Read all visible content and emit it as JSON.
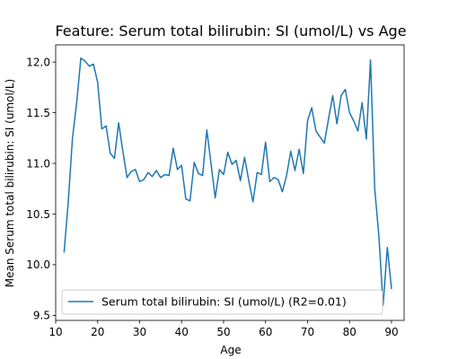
{
  "chart_data": {
    "type": "line",
    "title": "Feature: Serum total bilirubin:  SI (umol/L) vs Age",
    "xlabel": "Age",
    "ylabel": "Mean Serum total bilirubin:  SI (umol/L)",
    "xlim": [
      10,
      93
    ],
    "ylim": [
      9.45,
      12.17
    ],
    "xticks": [
      10,
      20,
      30,
      40,
      50,
      60,
      70,
      80,
      90
    ],
    "yticks": [
      9.5,
      10.0,
      10.5,
      11.0,
      11.5,
      12.0
    ],
    "xtick_labels": [
      "10",
      "20",
      "30",
      "40",
      "50",
      "60",
      "70",
      "80",
      "90"
    ],
    "ytick_labels": [
      "9.5",
      "10.0",
      "10.5",
      "11.0",
      "11.5",
      "12.0"
    ],
    "grid": false,
    "legend_position": "lower-left",
    "series": [
      {
        "name": "Serum total bilirubin:  SI (umol/L) (R2=0.01)",
        "color": "#1f77b4",
        "x": [
          12,
          13,
          14,
          15,
          16,
          17,
          18,
          19,
          20,
          21,
          22,
          23,
          24,
          25,
          26,
          27,
          28,
          29,
          30,
          31,
          32,
          33,
          34,
          35,
          36,
          37,
          38,
          39,
          40,
          41,
          42,
          43,
          44,
          45,
          46,
          47,
          48,
          49,
          50,
          51,
          52,
          53,
          54,
          55,
          56,
          57,
          58,
          59,
          60,
          61,
          62,
          63,
          64,
          65,
          66,
          67,
          68,
          69,
          70,
          71,
          72,
          73,
          74,
          75,
          76,
          77,
          78,
          79,
          80,
          81,
          82,
          83,
          84,
          85,
          86,
          87,
          88,
          89,
          90
        ],
        "y": [
          10.12,
          10.62,
          11.25,
          11.6,
          12.04,
          12.01,
          11.96,
          11.98,
          11.8,
          11.34,
          11.37,
          11.1,
          11.05,
          11.4,
          11.12,
          10.86,
          10.92,
          10.94,
          10.82,
          10.84,
          10.91,
          10.87,
          10.93,
          10.86,
          10.89,
          10.88,
          11.15,
          10.94,
          10.98,
          10.65,
          10.63,
          11.01,
          10.9,
          10.88,
          11.33,
          11.0,
          10.66,
          10.94,
          10.89,
          11.11,
          10.99,
          11.03,
          10.83,
          11.06,
          10.83,
          10.62,
          10.91,
          10.89,
          11.21,
          10.82,
          10.86,
          10.84,
          10.72,
          10.88,
          11.12,
          10.93,
          11.14,
          10.9,
          11.42,
          11.55,
          11.32,
          11.26,
          11.2,
          11.44,
          11.67,
          11.39,
          11.67,
          11.73,
          11.5,
          11.42,
          11.32,
          11.6,
          11.24,
          12.02,
          10.75,
          10.28,
          9.6,
          10.17,
          9.76
        ]
      }
    ]
  }
}
